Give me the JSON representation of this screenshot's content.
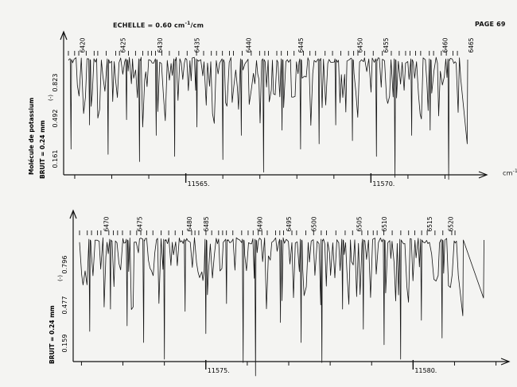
{
  "header": {
    "scale_label": "ECHELLE = 0.60 cm",
    "scale_exp": "-1",
    "scale_unit": "/cm",
    "page_label": "PAGE 69",
    "axis_unit": "cm"
  },
  "chart_data": [
    {
      "type": "line",
      "title": "",
      "side_labels": {
        "molecule": "Molécule de potassium",
        "noise": "BRUIT = 0.24 mm",
        "marker": "(-)"
      },
      "xlabel": "",
      "ylabel": "",
      "y_ticks": [
        "0.161",
        "0.492",
        "0.823"
      ],
      "wavenumber_ticks": [
        {
          "value": 11565,
          "label": "11565."
        },
        {
          "value": 11570,
          "label": "11570."
        }
      ],
      "xlim": [
        11561.7,
        11573.0
      ],
      "line_index_labels": [
        {
          "index": 6420,
          "wavenumber": 11562.2
        },
        {
          "index": 6425,
          "wavenumber": 11563.3
        },
        {
          "index": 6430,
          "wavenumber": 11564.3
        },
        {
          "index": 6435,
          "wavenumber": 11565.3
        },
        {
          "index": 6440,
          "wavenumber": 11566.7
        },
        {
          "index": 6445,
          "wavenumber": 11568.1
        },
        {
          "index": 6450,
          "wavenumber": 11569.7
        },
        {
          "index": 6455,
          "wavenumber": 11570.4
        },
        {
          "index": 6460,
          "wavenumber": 11572.0
        },
        {
          "index": 6465,
          "wavenumber": 11572.7
        }
      ],
      "deep_lines": [
        {
          "wavenumber": 11561.9,
          "depth": 0.83
        },
        {
          "wavenumber": 11562.4,
          "depth": 0.6
        },
        {
          "wavenumber": 11562.9,
          "depth": 0.88
        },
        {
          "wavenumber": 11563.4,
          "depth": 0.55
        },
        {
          "wavenumber": 11563.75,
          "depth": 0.95
        },
        {
          "wavenumber": 11564.2,
          "depth": 0.7
        },
        {
          "wavenumber": 11564.7,
          "depth": 0.9
        },
        {
          "wavenumber": 11565.3,
          "depth": 0.62
        },
        {
          "wavenumber": 11566.0,
          "depth": 0.93
        },
        {
          "wavenumber": 11566.5,
          "depth": 0.7
        },
        {
          "wavenumber": 11567.1,
          "depth": 1.05
        },
        {
          "wavenumber": 11567.6,
          "depth": 0.65
        },
        {
          "wavenumber": 11568.1,
          "depth": 0.83
        },
        {
          "wavenumber": 11568.6,
          "depth": 0.78
        },
        {
          "wavenumber": 11569.05,
          "depth": 0.6
        },
        {
          "wavenumber": 11569.5,
          "depth": 0.75
        },
        {
          "wavenumber": 11570.15,
          "depth": 0.9
        },
        {
          "wavenumber": 11570.65,
          "depth": 1.1
        },
        {
          "wavenumber": 11571.1,
          "depth": 0.7
        },
        {
          "wavenumber": 11571.6,
          "depth": 0.65
        },
        {
          "wavenumber": 11572.1,
          "depth": 1.12
        },
        {
          "wavenumber": 11572.6,
          "depth": 0.78
        }
      ]
    },
    {
      "type": "line",
      "title": "",
      "side_labels": {
        "noise": "BRUIT = 0.24 mm",
        "marker": "(-)"
      },
      "xlabel": "",
      "ylabel": "",
      "y_ticks": [
        "0.159",
        "0.477",
        "0.796"
      ],
      "wavenumber_ticks": [
        {
          "value": 11575,
          "label": "11575."
        },
        {
          "value": 11580,
          "label": "11580."
        }
      ],
      "xlim": [
        11571.8,
        11582.2
      ],
      "line_index_labels": [
        {
          "index": 6470,
          "wavenumber": 11572.6
        },
        {
          "index": 6475,
          "wavenumber": 11573.4
        },
        {
          "index": 6480,
          "wavenumber": 11574.6
        },
        {
          "index": 6485,
          "wavenumber": 11575.0
        },
        {
          "index": 6490,
          "wavenumber": 11576.3
        },
        {
          "index": 6495,
          "wavenumber": 11577.0
        },
        {
          "index": 6500,
          "wavenumber": 11577.6
        },
        {
          "index": 6505,
          "wavenumber": 11578.7
        },
        {
          "index": 6510,
          "wavenumber": 11579.3
        },
        {
          "index": 6515,
          "wavenumber": 11580.4
        },
        {
          "index": 6520,
          "wavenumber": 11580.9
        }
      ],
      "deep_lines": [
        {
          "wavenumber": 11572.2,
          "depth": 0.8
        },
        {
          "wavenumber": 11572.7,
          "depth": 0.6
        },
        {
          "wavenumber": 11573.1,
          "depth": 0.75
        },
        {
          "wavenumber": 11573.5,
          "depth": 0.9
        },
        {
          "wavenumber": 11574.0,
          "depth": 1.05
        },
        {
          "wavenumber": 11574.5,
          "depth": 0.62
        },
        {
          "wavenumber": 11575.0,
          "depth": 0.82
        },
        {
          "wavenumber": 11575.5,
          "depth": 0.55
        },
        {
          "wavenumber": 11575.9,
          "depth": 1.08
        },
        {
          "wavenumber": 11576.2,
          "depth": 1.2
        },
        {
          "wavenumber": 11576.8,
          "depth": 0.72
        },
        {
          "wavenumber": 11577.3,
          "depth": 0.9
        },
        {
          "wavenumber": 11577.8,
          "depth": 1.08
        },
        {
          "wavenumber": 11578.3,
          "depth": 0.6
        },
        {
          "wavenumber": 11578.8,
          "depth": 0.78
        },
        {
          "wavenumber": 11579.3,
          "depth": 0.92
        },
        {
          "wavenumber": 11579.7,
          "depth": 1.05
        },
        {
          "wavenumber": 11580.2,
          "depth": 0.7
        },
        {
          "wavenumber": 11580.7,
          "depth": 0.86
        },
        {
          "wavenumber": 11581.2,
          "depth": 0.66
        },
        {
          "wavenumber": 11581.7,
          "depth": 0.5
        }
      ]
    }
  ]
}
